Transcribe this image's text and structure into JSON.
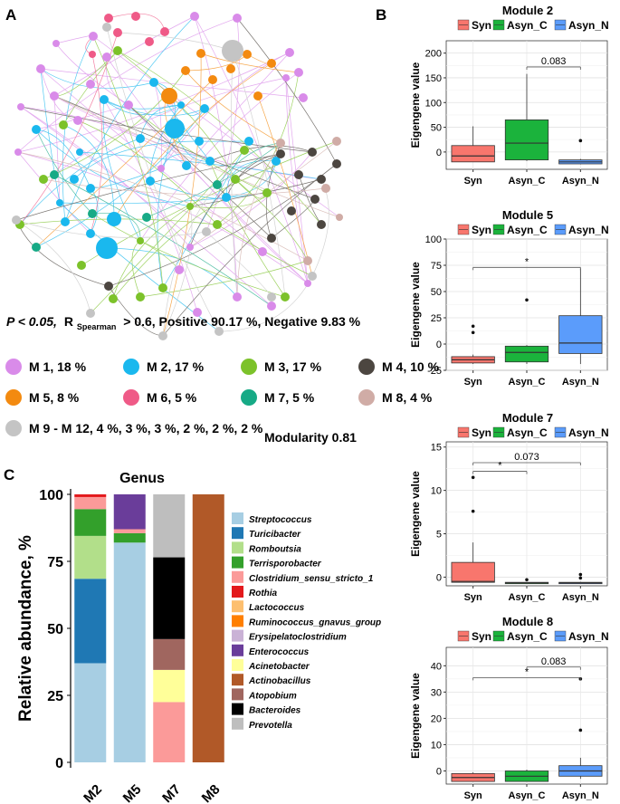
{
  "panels": {
    "a": {
      "label": "A"
    },
    "b": {
      "label": "B"
    },
    "c": {
      "label": "C"
    }
  },
  "network": {
    "stats_p": "P < 0.05,",
    "stats_r": "R",
    "stats_r_sub": "Spearman",
    "stats_rest": "> 0.6, Positive 90.17 %, Negative 9.83 %",
    "modularity": "Modularity 0.81",
    "modules": [
      {
        "label": "M 1, 18 %",
        "color": "#d98be9"
      },
      {
        "label": "M 2, 17 %",
        "color": "#1ab8ee"
      },
      {
        "label": "M 3, 17 %",
        "color": "#7cc22a"
      },
      {
        "label": "M 4, 10 %",
        "color": "#4c4640"
      },
      {
        "label": "M 5, 8 %",
        "color": "#f38a10"
      },
      {
        "label": "M 6, 5 %",
        "color": "#ef5a87"
      },
      {
        "label": "M 7, 5 %",
        "color": "#17aa86"
      },
      {
        "label": "M 8, 4 %",
        "color": "#d0aca6"
      },
      {
        "label": "M 9 - M 12, 4 %, 3 %, 3 %, 2 %, 2 %, 2 %",
        "color": "#c4c4c4"
      }
    ]
  },
  "chart_data": [
    {
      "type": "bar",
      "id": "genus",
      "title": "Genus",
      "ylabel": "Relative abundance, %",
      "xlabel": "",
      "ylim": [
        0,
        100
      ],
      "yticks": [
        0,
        25,
        50,
        75,
        100
      ],
      "categories": [
        "M2",
        "M5",
        "M7",
        "M8"
      ],
      "series": [
        {
          "name": "Streptococcus",
          "color": "#a7cee3",
          "values": [
            37,
            82,
            0,
            0
          ]
        },
        {
          "name": "Turicibacter",
          "color": "#1f78b4",
          "values": [
            31.5,
            0,
            0,
            0
          ]
        },
        {
          "name": "Romboutsia",
          "color": "#b2df8a",
          "values": [
            16,
            0,
            0,
            0
          ]
        },
        {
          "name": "Terrisporobacter",
          "color": "#33a02b",
          "values": [
            10,
            3.5,
            0,
            0
          ]
        },
        {
          "name": "Clostridium_sensu_stricto_1",
          "color": "#fb9a99",
          "values": [
            4.5,
            1.5,
            22.5,
            0
          ]
        },
        {
          "name": "Rothia",
          "color": "#e3191c",
          "values": [
            1,
            0,
            0,
            0
          ]
        },
        {
          "name": "Lactococcus",
          "color": "#fdbf6f",
          "values": [
            0,
            0,
            0,
            0
          ]
        },
        {
          "name": "Ruminococcus_gnavus_group",
          "color": "#ff7f00",
          "values": [
            0,
            0,
            0,
            0
          ]
        },
        {
          "name": "Erysipelatoclostridium",
          "color": "#cab2d6",
          "values": [
            0,
            0,
            0,
            0
          ]
        },
        {
          "name": "Enterococcus",
          "color": "#6a3d9a",
          "values": [
            0,
            13,
            0,
            0
          ]
        },
        {
          "name": "Acinetobacter",
          "color": "#ffff99",
          "values": [
            0,
            0,
            12,
            0
          ]
        },
        {
          "name": "Actinobacillus",
          "color": "#b15928",
          "values": [
            0,
            0,
            0,
            100
          ]
        },
        {
          "name": "Atopobium",
          "color": "#a0665f",
          "values": [
            0,
            0,
            11.5,
            0
          ]
        },
        {
          "name": "Bacteroides",
          "color": "#000000",
          "values": [
            0,
            0,
            30.5,
            0
          ]
        },
        {
          "name": "Prevotella",
          "color": "#bebebe",
          "values": [
            0,
            0,
            23.5,
            0
          ]
        }
      ]
    },
    {
      "type": "box",
      "id": "module2",
      "title": "Module 2",
      "ylabel": "Eigengene value",
      "legend": [
        "Syn",
        "Asyn_C",
        "Asyn_N"
      ],
      "legend_colors": [
        "#f8766d",
        "#1bb33c",
        "#5b9cfb"
      ],
      "categories": [
        "Syn",
        "Asyn_C",
        "Asyn_N"
      ],
      "ylim": [
        -35,
        225
      ],
      "yticks": [
        0,
        50,
        100,
        150,
        200
      ],
      "boxes": [
        {
          "min": -20,
          "q1": -20,
          "median": -8,
          "q3": 13,
          "max": 52,
          "outliers": []
        },
        {
          "min": -18,
          "q1": -16,
          "median": 18,
          "q3": 65,
          "max": 158,
          "outliers": []
        },
        {
          "min": -25,
          "q1": -24,
          "median": -20,
          "q3": -16,
          "max": -14,
          "outliers": [
            23
          ]
        }
      ],
      "annotations": [
        {
          "from": 1,
          "to": 2,
          "y": 172,
          "text": "0.083"
        }
      ]
    },
    {
      "type": "box",
      "id": "module5",
      "title": "Module 5",
      "ylabel": "Eigengene value",
      "legend": [
        "Syn",
        "Asyn_C",
        "Asyn_N"
      ],
      "legend_colors": [
        "#f8766d",
        "#1bb33c",
        "#5b9cfb"
      ],
      "categories": [
        "Syn",
        "Asyn_C",
        "Asyn_N"
      ],
      "ylim": [
        -25,
        100
      ],
      "yticks": [
        -25,
        0,
        25,
        50,
        75,
        100
      ],
      "boxes": [
        {
          "min": -19,
          "q1": -18,
          "median": -15,
          "q3": -12,
          "max": -10,
          "outliers": [
            17,
            11
          ]
        },
        {
          "min": -19,
          "q1": -17,
          "median": -8,
          "q3": -2,
          "max": -1,
          "outliers": [
            42
          ]
        },
        {
          "min": -19,
          "q1": -9,
          "median": 1,
          "q3": 27,
          "max": 72,
          "outliers": []
        }
      ],
      "annotations": [
        {
          "from": 0,
          "to": 2,
          "y": 73,
          "text": "*"
        }
      ]
    },
    {
      "type": "box",
      "id": "module7",
      "title": "Module 7",
      "ylabel": "Eigengene value",
      "legend": [
        "Syn",
        "Asyn_C",
        "Asyn_N"
      ],
      "legend_colors": [
        "#f8766d",
        "#1bb33c",
        "#5b9cfb"
      ],
      "categories": [
        "Syn",
        "Asyn_C",
        "Asyn_N"
      ],
      "ylim": [
        -1,
        15.6
      ],
      "yticks": [
        0,
        5,
        10,
        15
      ],
      "boxes": [
        {
          "min": -0.6,
          "q1": -0.6,
          "median": -0.5,
          "q3": 1.7,
          "max": 4,
          "outliers": [
            11.5,
            7.6
          ]
        },
        {
          "min": -0.7,
          "q1": -0.7,
          "median": -0.65,
          "q3": -0.6,
          "max": -0.6,
          "outliers": [
            -0.3
          ]
        },
        {
          "min": -0.7,
          "q1": -0.7,
          "median": -0.65,
          "q3": -0.6,
          "max": -0.55,
          "outliers": [
            -0.1,
            0.3
          ]
        }
      ],
      "annotations": [
        {
          "from": 0,
          "to": 2,
          "y": 13.2,
          "text": "0.073"
        },
        {
          "from": 0,
          "to": 1,
          "y": 12.2,
          "text": "*"
        }
      ]
    },
    {
      "type": "box",
      "id": "module8",
      "title": "Module 8",
      "ylabel": "Eigengene value",
      "legend": [
        "Syn",
        "Asyn_C",
        "Asyn_N"
      ],
      "legend_colors": [
        "#f8766d",
        "#1bb33c",
        "#5b9cfb"
      ],
      "categories": [
        "Syn",
        "Asyn_C",
        "Asyn_N"
      ],
      "ylim": [
        -5,
        47
      ],
      "yticks": [
        0,
        10,
        20,
        30,
        40
      ],
      "boxes": [
        {
          "min": -4,
          "q1": -4,
          "median": -2.5,
          "q3": -1,
          "max": -0.5,
          "outliers": []
        },
        {
          "min": -4,
          "q1": -4,
          "median": -2,
          "q3": 0,
          "max": 0.5,
          "outliers": []
        },
        {
          "min": -3,
          "q1": -2,
          "median": 0,
          "q3": 2,
          "max": 5,
          "outliers": [
            35,
            15.5
          ]
        }
      ],
      "annotations": [
        {
          "from": 1,
          "to": 2,
          "y": 39.5,
          "text": "0.083"
        },
        {
          "from": 0,
          "to": 2,
          "y": 35.5,
          "text": "*"
        }
      ]
    }
  ]
}
